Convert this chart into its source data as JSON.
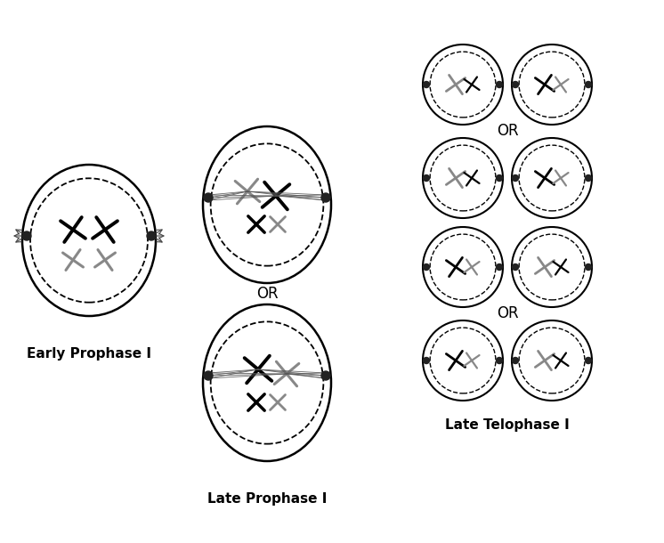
{
  "bg_color": "#ffffff",
  "title_color": "#000000",
  "cell_outline_color": "#000000",
  "nucleus_dash_color": "#000000",
  "black_chrom": "#000000",
  "gray_chrom": "#888888",
  "centromere_color": "#333333",
  "spindle_color": "#555555",
  "labels": {
    "early_prophase": "Early Prophase I",
    "late_prophase": "Late Prophase I",
    "late_telophase": "Late Telophase I",
    "or": "OR"
  },
  "label_fontsize": 11,
  "or_fontsize": 12
}
